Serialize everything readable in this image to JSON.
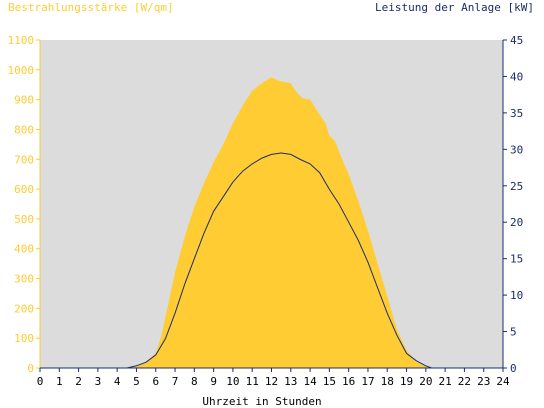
{
  "chart_data": {
    "type": "area",
    "title_left": "Bestrahlungsstärke [W/qm]",
    "title_right": "Leistung der Anlage [kW]",
    "xlabel": "Uhrzeit in Stunden",
    "x_ticks": [
      "0",
      "1",
      "2",
      "3",
      "4",
      "5",
      "6",
      "7",
      "8",
      "9",
      "10",
      "11",
      "12",
      "13",
      "14",
      "15",
      "16",
      "17",
      "18",
      "19",
      "20",
      "21",
      "22",
      "23",
      "24"
    ],
    "xlim": [
      0,
      24
    ],
    "y_left": {
      "ylim": [
        0,
        1100
      ],
      "ticks": [
        "0",
        "100",
        "200",
        "300",
        "400",
        "500",
        "600",
        "700",
        "800",
        "900",
        "1000",
        "1100"
      ],
      "color": "#ffcc33"
    },
    "y_right": {
      "ylim": [
        0,
        45
      ],
      "ticks": [
        "0",
        "5",
        "10",
        "15",
        "20",
        "25",
        "30",
        "35",
        "40",
        "45"
      ],
      "color": "#1a2d6b"
    },
    "grid": false,
    "plot_background": "#dcdcdc",
    "series": [
      {
        "name": "Bestrahlungsstärke [W/qm]",
        "axis": "left",
        "style": "area",
        "color": "#ffcc33",
        "x": [
          0,
          4.5,
          5,
          5.5,
          6,
          6.3,
          6.6,
          7,
          7.5,
          8,
          8.5,
          9,
          9.5,
          10,
          10.5,
          11,
          11.3,
          11.6,
          12,
          12.3,
          12.6,
          13,
          13.3,
          13.6,
          14,
          14.4,
          14.8,
          15,
          15.3,
          15.6,
          16,
          16.5,
          17,
          17.5,
          18,
          18.5,
          19,
          19.5,
          20,
          20.3,
          24
        ],
        "y": [
          0,
          0,
          5,
          20,
          50,
          110,
          200,
          320,
          440,
          540,
          620,
          690,
          750,
          820,
          880,
          930,
          945,
          960,
          975,
          965,
          960,
          955,
          925,
          905,
          900,
          860,
          820,
          780,
          760,
          710,
          650,
          560,
          460,
          350,
          240,
          130,
          60,
          20,
          5,
          0,
          0
        ]
      },
      {
        "name": "Leistung der Anlage [kW]",
        "axis": "right",
        "style": "line",
        "color": "#1a2d6b",
        "x": [
          0,
          4.5,
          5,
          5.5,
          6,
          6.5,
          7,
          7.5,
          8,
          8.5,
          9,
          9.5,
          10,
          10.5,
          11,
          11.5,
          12,
          12.5,
          13,
          13.5,
          14,
          14.5,
          15,
          15.5,
          16,
          16.5,
          17,
          17.5,
          18,
          18.5,
          19,
          19.5,
          20,
          20.3,
          24
        ],
        "y": [
          0,
          0,
          0.3,
          0.8,
          1.8,
          4,
          7.5,
          11.5,
          15,
          18.5,
          21.5,
          23.5,
          25.5,
          27,
          28,
          28.8,
          29.3,
          29.5,
          29.3,
          28.6,
          28,
          26.8,
          24.5,
          22.5,
          20,
          17.5,
          14.5,
          11,
          7.5,
          4.5,
          2,
          1,
          0.3,
          0,
          0
        ]
      }
    ]
  }
}
